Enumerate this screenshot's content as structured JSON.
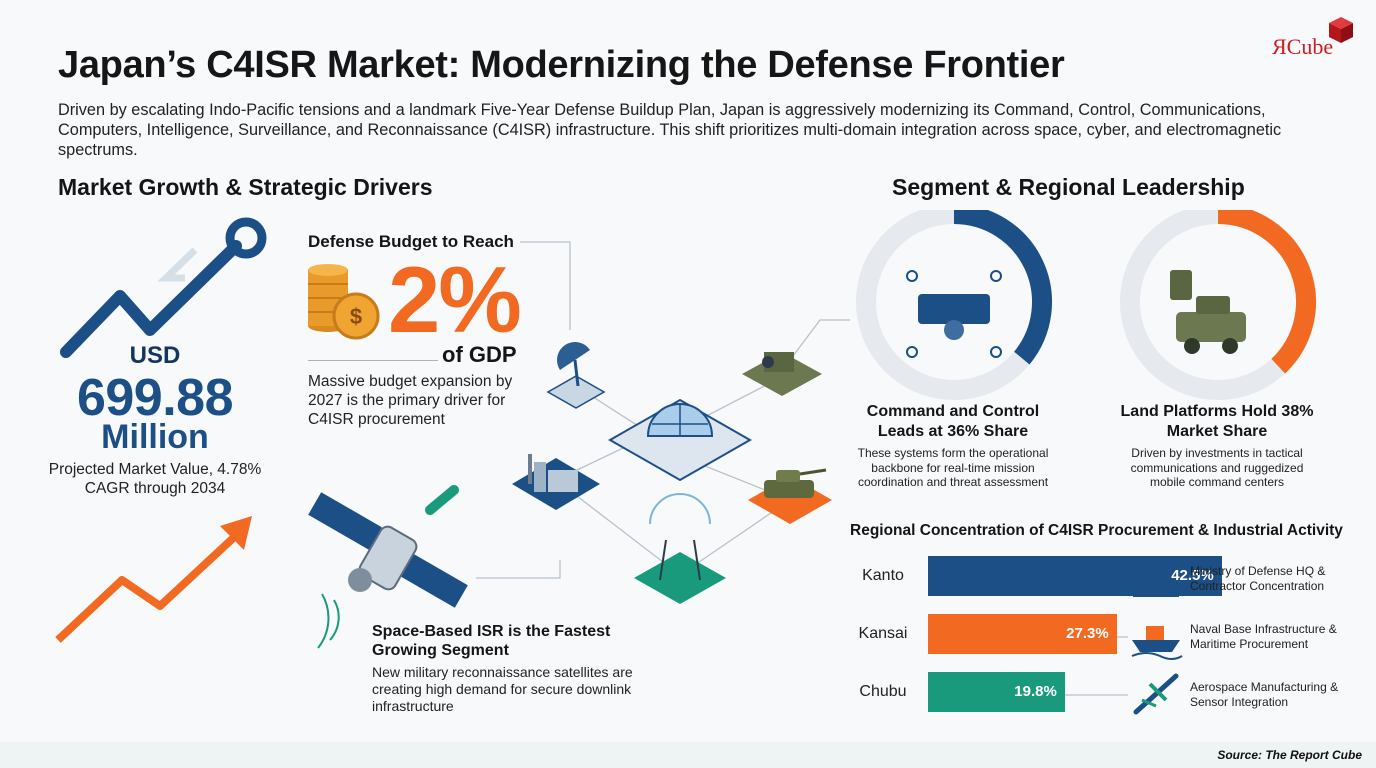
{
  "brand": {
    "logo_text": "ЯCube",
    "brand_color": "#d01b22"
  },
  "header": {
    "title": "Japan’s C4ISR Market: Modernizing the Defense Frontier",
    "intro": "Driven by escalating Indo-Pacific tensions and a landmark Five-Year Defense Buildup Plan, Japan is aggressively modernizing its Command, Control, Communications, Computers, Intelligence, Surveillance, and Reconnaissance (C4ISR) infrastructure. This shift prioritizes multi-domain integration across space, cyber, and electromagnetic spectrums."
  },
  "left": {
    "heading": "Market Growth & Strategic Drivers",
    "market": {
      "currency": "USD",
      "value": "699.88",
      "unit": "Million",
      "description": "Projected Market Value, 4.78% CAGR through 2034"
    },
    "budget": {
      "heading": "Defense Budget to Reach",
      "percent": "2%",
      "of": "of GDP",
      "description": "Massive budget expansion by 2027 is the primary driver for C4ISR procurement"
    },
    "space": {
      "heading": "Space-Based ISR is the Fastest Growing Segment",
      "description": "New military reconnaissance satellites are creating high demand for secure downlink infrastructure"
    }
  },
  "right": {
    "heading": "Segment & Regional Leadership",
    "donuts": [
      {
        "title": "Command and Control Leads at 36% Share",
        "description": "These systems form the operational backbone for real-time mission coordination and threat assessment"
      },
      {
        "title": "Land Platforms Hold 38% Market Share",
        "description": "Driven by investments in tactical communications and ruggedized mobile command centers"
      }
    ],
    "bars_heading": "Regional Concentration of C4ISR Procurement & Industrial Activity",
    "bars": [
      {
        "region": "Kanto",
        "label": "42.5%",
        "note": "Ministry of Defense HQ & Contractor Concentration"
      },
      {
        "region": "Kansai",
        "label": "27.3%",
        "note": "Naval Base Infrastructure & Maritime Procurement"
      },
      {
        "region": "Chubu",
        "label": "19.8%",
        "note": "Aerospace Manufacturing & Sensor Integration"
      }
    ]
  },
  "chart_data": [
    {
      "type": "pie",
      "title": "Command and Control Leads at 36% Share",
      "slices": [
        {
          "label": "Command and Control",
          "value": 36
        }
      ],
      "colors": {
        "share": "#1c4f86",
        "rest": "#e6e9ed"
      }
    },
    {
      "type": "pie",
      "title": "Land Platforms Hold 38% Market Share",
      "slices": [
        {
          "label": "Land Platforms",
          "value": 38
        }
      ],
      "colors": {
        "share": "#f26a21",
        "rest": "#e6e9ed"
      }
    },
    {
      "type": "bar",
      "orientation": "horizontal",
      "title": "Regional Concentration of C4ISR Procurement & Industrial Activity",
      "categories": [
        "Kanto",
        "Kansai",
        "Chubu"
      ],
      "values": [
        42.5,
        27.3,
        19.8
      ],
      "xlim": [
        0,
        50
      ],
      "colors": [
        "#1c4f86",
        "#f26a21",
        "#1a9a7c"
      ]
    }
  ],
  "source": "Source: The Report Cube"
}
